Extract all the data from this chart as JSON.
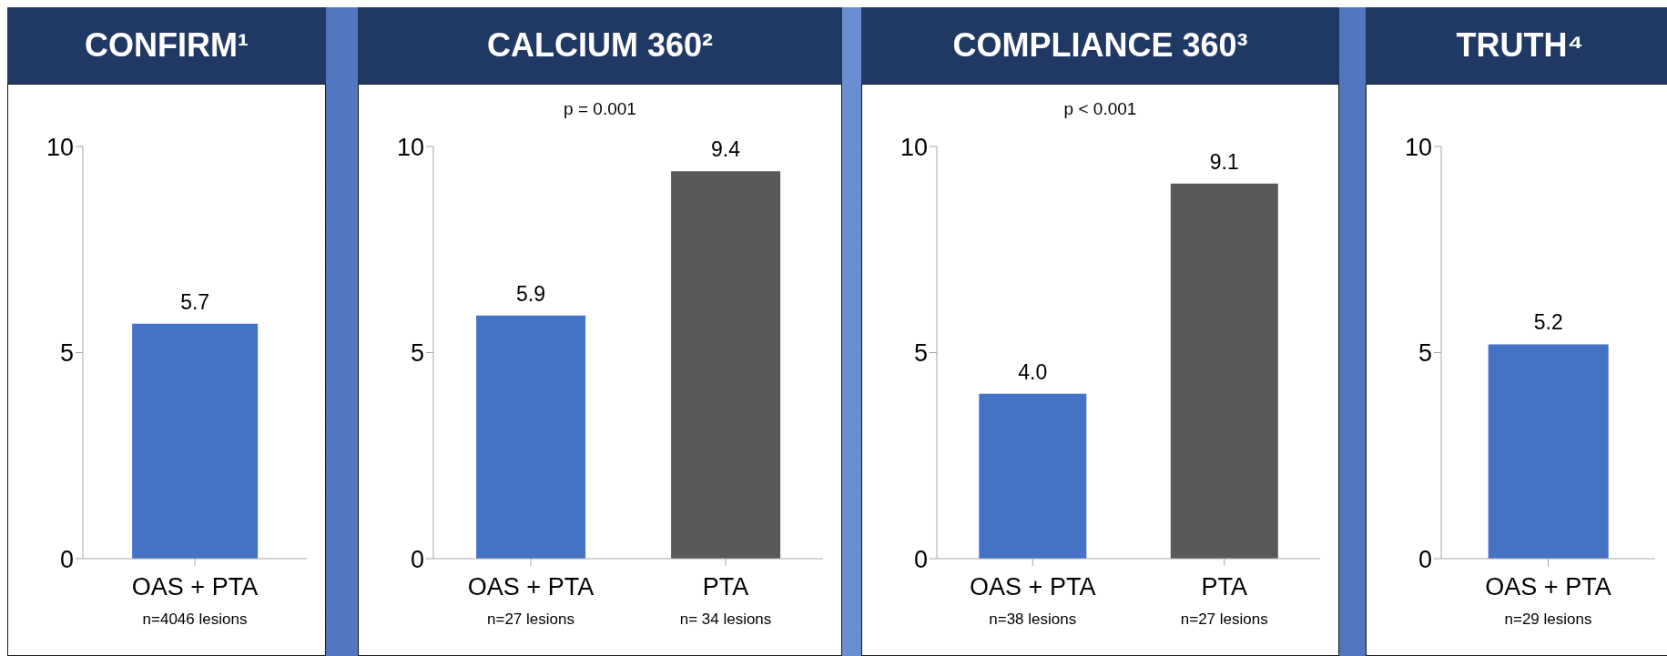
{
  "chart_data": [
    {
      "type": "bar",
      "title": "CONFIRM¹",
      "categories": [
        "OAS + PTA\nn=4046 lesions"
      ],
      "values": [
        5.7
      ],
      "colors": [
        "#4472c4"
      ],
      "value_labels": [
        "5.7"
      ],
      "ylim": [
        0,
        10
      ],
      "yticks": [
        0,
        5,
        10
      ],
      "grid": false,
      "legend": false
    },
    {
      "type": "bar",
      "title": "CALCIUM 360²",
      "categories": [
        "OAS + PTA\nn=27 lesions",
        "PTA\nn= 34 lesions"
      ],
      "values": [
        5.9,
        9.4
      ],
      "colors": [
        "#4472c4",
        "#595959"
      ],
      "value_labels": [
        "5.9",
        "9.4"
      ],
      "ylim": [
        0,
        10
      ],
      "yticks": [
        0,
        5,
        10
      ],
      "grid": false,
      "legend": false,
      "annotations": [
        "p = 0.001"
      ]
    },
    {
      "type": "bar",
      "title": "COMPLIANCE 360³",
      "categories": [
        "OAS + PTA\nn=38 lesions",
        "PTA\nn=27 lesions"
      ],
      "values": [
        4.0,
        9.1
      ],
      "colors": [
        "#4472c4",
        "#595959"
      ],
      "value_labels": [
        "4.0",
        "9.1"
      ],
      "ylim": [
        0,
        10
      ],
      "yticks": [
        0,
        5,
        10
      ],
      "grid": false,
      "legend": false,
      "annotations": [
        "p < 0.001"
      ]
    },
    {
      "type": "bar",
      "title": "TRUTH⁴",
      "categories": [
        "OAS + PTA\nn=29 lesions"
      ],
      "values": [
        5.2
      ],
      "colors": [
        "#4472c4"
      ],
      "value_labels": [
        "5.2"
      ],
      "ylim": [
        0,
        10
      ],
      "yticks": [
        0,
        5,
        10
      ],
      "grid": false,
      "legend": false
    }
  ]
}
